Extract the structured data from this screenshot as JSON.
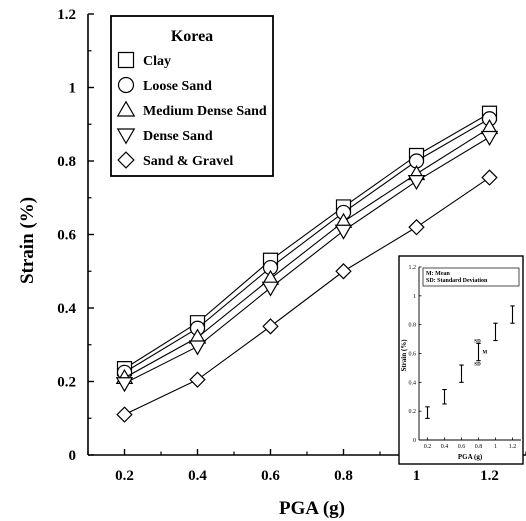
{
  "chart_data": {
    "type": "line",
    "xlabel": "PGA (g)",
    "ylabel": "Strain (%)",
    "x": [
      0.2,
      0.4,
      0.6,
      0.8,
      1.0,
      1.2
    ],
    "xticks": [
      "0.2",
      "0.4",
      "0.6",
      "0.8",
      "1",
      "1.2"
    ],
    "xlim": [
      0.1,
      1.3
    ],
    "ylim": [
      0,
      1.2
    ],
    "yticks": [
      "0",
      "0.2",
      "0.4",
      "0.6",
      "0.8",
      "1",
      "1.2"
    ],
    "grid": false,
    "legend_title": "Korea",
    "legend_position": "top-left",
    "series": [
      {
        "name": "Clay",
        "marker": "square",
        "values": [
          0.235,
          0.36,
          0.53,
          0.675,
          0.815,
          0.93
        ]
      },
      {
        "name": "Loose Sand",
        "marker": "circle",
        "values": [
          0.225,
          0.345,
          0.51,
          0.66,
          0.8,
          0.915
        ]
      },
      {
        "name": "Medium Dense Sand",
        "marker": "triangle-up",
        "values": [
          0.21,
          0.32,
          0.48,
          0.635,
          0.765,
          0.89
        ]
      },
      {
        "name": "Dense Sand",
        "marker": "triangle-down",
        "values": [
          0.195,
          0.295,
          0.455,
          0.61,
          0.745,
          0.865
        ]
      },
      {
        "name": "Sand & Gravel",
        "marker": "diamond",
        "values": [
          0.11,
          0.205,
          0.35,
          0.5,
          0.62,
          0.755
        ]
      }
    ],
    "inset": {
      "type": "errorbar",
      "xlabel": "PGA (g)",
      "ylabel": "Strain (%)",
      "x": [
        0.2,
        0.4,
        0.6,
        0.8,
        1.0,
        1.2
      ],
      "xticks": [
        "0.2",
        "0.4",
        "0.6",
        "0.8",
        "1",
        "1.2"
      ],
      "xlim": [
        0.1,
        1.3
      ],
      "ylim": [
        0,
        1.2
      ],
      "yticks": [
        "0",
        "0.2",
        "0.4",
        "0.6",
        "0.8",
        "1",
        "1.2"
      ],
      "mean": [
        0.19,
        0.3,
        0.46,
        0.61,
        0.75,
        0.87
      ],
      "sd": [
        0.04,
        0.05,
        0.06,
        0.06,
        0.06,
        0.06
      ],
      "legend": [
        "M: Mean",
        "SD: Standard Deviation"
      ],
      "annotations": [
        "SD",
        "M",
        "SD"
      ],
      "annotation_x": 0.8
    }
  }
}
